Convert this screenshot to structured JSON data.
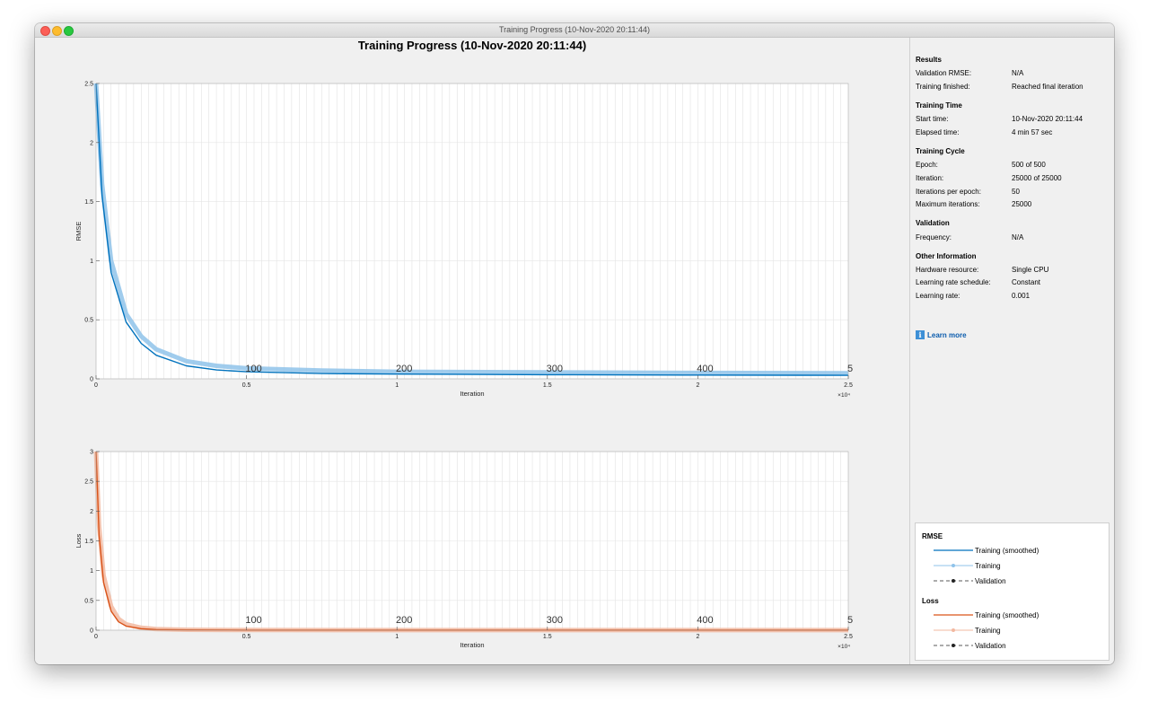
{
  "window": {
    "title": "Training Progress (10-Nov-2020 20:11:44)"
  },
  "figure": {
    "title": "Training Progress (10-Nov-2020 20:11:44)"
  },
  "sidebar": {
    "sections": [
      {
        "title": "Results",
        "rows": [
          {
            "label": "Validation RMSE:",
            "value": "N/A"
          },
          {
            "label": "Training finished:",
            "value": "Reached final iteration"
          }
        ]
      },
      {
        "title": "Training Time",
        "rows": [
          {
            "label": "Start time:",
            "value": "10-Nov-2020 20:11:44"
          },
          {
            "label": "Elapsed time:",
            "value": "4 min 57 sec"
          }
        ]
      },
      {
        "title": "Training Cycle",
        "rows": [
          {
            "label": "Epoch:",
            "value": "500 of 500"
          },
          {
            "label": "Iteration:",
            "value": "25000 of 25000"
          },
          {
            "label": "Iterations per epoch:",
            "value": "50"
          },
          {
            "label": "Maximum iterations:",
            "value": "25000"
          }
        ]
      },
      {
        "title": "Validation",
        "rows": [
          {
            "label": "Frequency:",
            "value": "N/A"
          }
        ]
      },
      {
        "title": "Other Information",
        "rows": [
          {
            "label": "Hardware resource:",
            "value": "Single CPU"
          },
          {
            "label": "Learning rate schedule:",
            "value": "Constant"
          },
          {
            "label": "Learning rate:",
            "value": "0.001"
          }
        ]
      }
    ],
    "learn_more": "Learn more",
    "learn_more_icon": "info-icon"
  },
  "legend": {
    "groups": [
      {
        "title": "RMSE",
        "color": "#0072bd",
        "light": "#8fc3ea",
        "items": [
          "Training (smoothed)",
          "Training",
          "Validation"
        ]
      },
      {
        "title": "Loss",
        "color": "#d95319",
        "light": "#f2b8a0",
        "items": [
          "Training (smoothed)",
          "Training",
          "Validation"
        ]
      }
    ]
  },
  "chart_data": [
    {
      "type": "line",
      "ylabel": "RMSE",
      "xlabel": "Iteration",
      "xlim": [
        0,
        25000
      ],
      "ylim": [
        0,
        2.5
      ],
      "x_exponent_label": "×10⁴",
      "x_ticks": [
        0,
        5000,
        10000,
        15000,
        20000,
        25000
      ],
      "x_tick_labels": [
        "0",
        "0.5",
        "1",
        "1.5",
        "2",
        "2.5"
      ],
      "y_ticks": [
        0,
        0.5,
        1,
        1.5,
        2,
        2.5
      ],
      "y_tick_labels": [
        "0",
        "0.5",
        "1",
        "1.5",
        "2",
        "2.5"
      ],
      "epoch_labels": [
        "100",
        "200",
        "300",
        "400",
        "5"
      ],
      "epoch_label_iterations": [
        5000,
        10000,
        15000,
        20000,
        25000
      ],
      "epoch_line_every": 50,
      "series": [
        {
          "name": "Training (smoothed)",
          "color": "#0072bd",
          "x": [
            0,
            200,
            500,
            1000,
            1500,
            2000,
            3000,
            4000,
            5000,
            7500,
            10000,
            15000,
            20000,
            25000
          ],
          "y": [
            2.5,
            1.55,
            0.9,
            0.48,
            0.3,
            0.2,
            0.11,
            0.075,
            0.06,
            0.045,
            0.04,
            0.035,
            0.032,
            0.03
          ]
        },
        {
          "name": "Training",
          "color": "#8fc3ea",
          "x": [
            0,
            200,
            500,
            1000,
            1500,
            2000,
            3000,
            4000,
            5000,
            7500,
            10000,
            15000,
            20000,
            25000
          ],
          "y": [
            2.5,
            1.65,
            1.0,
            0.55,
            0.36,
            0.25,
            0.15,
            0.11,
            0.09,
            0.07,
            0.06,
            0.055,
            0.05,
            0.048
          ]
        }
      ]
    },
    {
      "type": "line",
      "ylabel": "Loss",
      "xlabel": "Iteration",
      "xlim": [
        0,
        25000
      ],
      "ylim": [
        0,
        3
      ],
      "x_exponent_label": "×10⁴",
      "x_ticks": [
        0,
        5000,
        10000,
        15000,
        20000,
        25000
      ],
      "x_tick_labels": [
        "0",
        "0.5",
        "1",
        "1.5",
        "2",
        "2.5"
      ],
      "y_ticks": [
        0,
        0.5,
        1,
        1.5,
        2,
        2.5,
        3
      ],
      "y_tick_labels": [
        "0",
        "0.5",
        "1",
        "1.5",
        "2",
        "2.5",
        "3"
      ],
      "epoch_labels": [
        "100",
        "200",
        "300",
        "400",
        "5"
      ],
      "epoch_label_iterations": [
        5000,
        10000,
        15000,
        20000,
        25000
      ],
      "epoch_line_every": 50,
      "series": [
        {
          "name": "Training (smoothed)",
          "color": "#d95319",
          "x": [
            0,
            100,
            250,
            500,
            750,
            1000,
            1500,
            2000,
            3000,
            5000,
            10000,
            25000
          ],
          "y": [
            3.0,
            1.6,
            0.8,
            0.32,
            0.14,
            0.07,
            0.025,
            0.01,
            0.004,
            0.002,
            0.001,
            0.001
          ]
        },
        {
          "name": "Training",
          "color": "#f2b8a0",
          "x": [
            0,
            100,
            250,
            500,
            750,
            1000,
            1500,
            2000,
            3000,
            5000,
            10000,
            25000
          ],
          "y": [
            3.0,
            1.75,
            0.92,
            0.4,
            0.19,
            0.1,
            0.04,
            0.018,
            0.007,
            0.003,
            0.002,
            0.002
          ]
        }
      ]
    }
  ]
}
